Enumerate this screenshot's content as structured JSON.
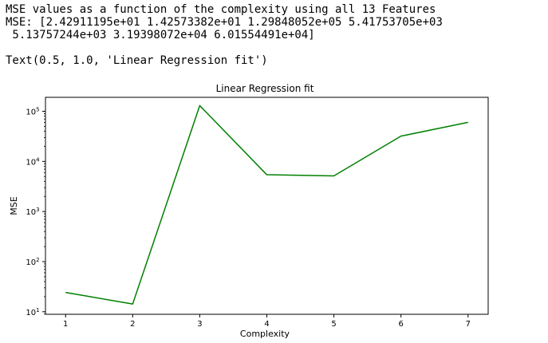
{
  "console": {
    "line1": "MSE values as a function of the complexity using all 13 Features",
    "line2": "MSE: [2.42911195e+01 1.42573382e+01 1.29848052e+05 5.41753705e+03",
    "line3": " 5.13757244e+03 3.19398072e+04 6.01554491e+04]",
    "result": "Text(0.5, 1.0, 'Linear Regression fit')"
  },
  "chart_data": {
    "type": "line",
    "title": "Linear Regression fit",
    "xlabel": "Complexity",
    "ylabel": "MSE",
    "x": [
      1,
      2,
      3,
      4,
      5,
      6,
      7
    ],
    "series": [
      {
        "values": [
          24.2911195,
          14.2573382,
          129848.052,
          5417.53705,
          5137.57244,
          31939.8072,
          60155.4491
        ],
        "color": "#008000"
      }
    ],
    "xticks": [
      "1",
      "2",
      "3",
      "4",
      "5",
      "6",
      "7"
    ],
    "yscale": "log",
    "yticks": [
      {
        "base": "10",
        "exp": "1"
      },
      {
        "base": "10",
        "exp": "2"
      },
      {
        "base": "10",
        "exp": "3"
      },
      {
        "base": "10",
        "exp": "4"
      },
      {
        "base": "10",
        "exp": "5"
      }
    ],
    "xlim": [
      0.7,
      7.3
    ],
    "ylim": [
      8.9,
      190000
    ],
    "grid": false
  }
}
